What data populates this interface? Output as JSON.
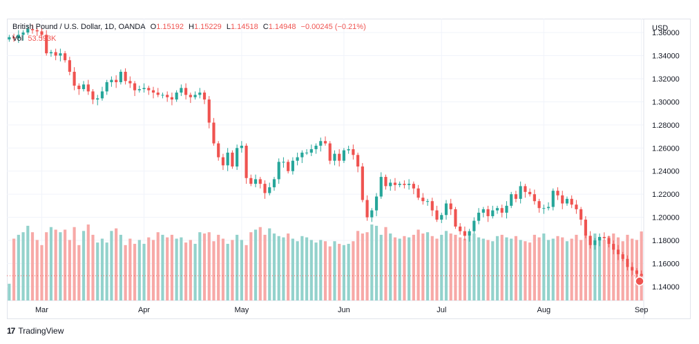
{
  "legend": {
    "symbol": "British Pound / U.S. Dollar, 1D, OANDA",
    "open_label": "O",
    "open": "1.15192",
    "high_label": "H",
    "high": "1.15229",
    "low_label": "L",
    "low": "1.14518",
    "close_label": "C",
    "close": "1.14948",
    "change": "−0.00245 (−0.21%)",
    "vol_label": "Vol",
    "vol": "53.593K"
  },
  "axis": {
    "currency": "USD"
  },
  "footer": {
    "brand": "TradingView",
    "logo_glyph": "17"
  },
  "colors": {
    "up": "#26a69a",
    "down": "#ef5350",
    "vol_up": "#93d2cc",
    "vol_down": "#f7a9a7",
    "grid": "#f0f3fa"
  },
  "chart_data": {
    "type": "candlestick",
    "x_tick_labels": [
      "Mar",
      "Apr",
      "May",
      "Jun",
      "Jul",
      "Aug",
      "Sep"
    ],
    "y_ticks": [
      1.14,
      1.16,
      1.18,
      1.2,
      1.22,
      1.24,
      1.26,
      1.28,
      1.3,
      1.32,
      1.34,
      1.36
    ],
    "ylim": [
      1.128,
      1.372
    ],
    "current_price": 1.14948,
    "series": [
      {
        "name": "price",
        "close": [
          1.356,
          1.355,
          1.358,
          1.36,
          1.363,
          1.362,
          1.361,
          1.358,
          1.342,
          1.343,
          1.34,
          1.342,
          1.336,
          1.326,
          1.314,
          1.311,
          1.315,
          1.309,
          1.302,
          1.303,
          1.309,
          1.317,
          1.319,
          1.317,
          1.326,
          1.318,
          1.316,
          1.31,
          1.311,
          1.312,
          1.31,
          1.308,
          1.306,
          1.306,
          1.304,
          1.302,
          1.308,
          1.312,
          1.306,
          1.304,
          1.306,
          1.308,
          1.302,
          1.282,
          1.264,
          1.252,
          1.245,
          1.256,
          1.244,
          1.26,
          1.262,
          1.234,
          1.229,
          1.233,
          1.229,
          1.221,
          1.226,
          1.233,
          1.248,
          1.248,
          1.24,
          1.249,
          1.252,
          1.256,
          1.256,
          1.259,
          1.262,
          1.266,
          1.264,
          1.249,
          1.255,
          1.249,
          1.258,
          1.259,
          1.254,
          1.244,
          1.215,
          1.2,
          1.206,
          1.218,
          1.235,
          1.227,
          1.23,
          1.228,
          1.229,
          1.228,
          1.229,
          1.225,
          1.217,
          1.214,
          1.214,
          1.206,
          1.198,
          1.202,
          1.212,
          1.207,
          1.192,
          1.188,
          1.184,
          1.188,
          1.197,
          1.204,
          1.207,
          1.201,
          1.206,
          1.208,
          1.204,
          1.21,
          1.22,
          1.216,
          1.227,
          1.222,
          1.22,
          1.214,
          1.208,
          1.208,
          1.209,
          1.223,
          1.219,
          1.212,
          1.216,
          1.211,
          1.207,
          1.198,
          1.184,
          1.176,
          1.18,
          1.183,
          1.182,
          1.177,
          1.172,
          1.168,
          1.164,
          1.157,
          1.154,
          1.151,
          1.1495
        ]
      },
      {
        "name": "Vol",
        "values": [
          13,
          48,
          51,
          53,
          58,
          53,
          47,
          43,
          53,
          57,
          55,
          53,
          55,
          47,
          57,
          43,
          54,
          59,
          51,
          45,
          48,
          45,
          54,
          56,
          51,
          43,
          48,
          44,
          47,
          44,
          49,
          47,
          53,
          51,
          49,
          51,
          48,
          49,
          45,
          47,
          44,
          53,
          52,
          53,
          46,
          51,
          48,
          44,
          47,
          51,
          47,
          43,
          53,
          55,
          57,
          51,
          56,
          52,
          50,
          49,
          52,
          48,
          46,
          50,
          49,
          47,
          45,
          47,
          46,
          42,
          46,
          44,
          43,
          44,
          46,
          54,
          52,
          53,
          59,
          58,
          51,
          57,
          52,
          49,
          48,
          50,
          49,
          51,
          55,
          52,
          53,
          50,
          48,
          51,
          54,
          52,
          51,
          49,
          48,
          50,
          52,
          49,
          48,
          47,
          46,
          50,
          51,
          49,
          48,
          50,
          47,
          46,
          45,
          51,
          49,
          52,
          47,
          48,
          50,
          49,
          46,
          48,
          51,
          47,
          50,
          48,
          52,
          49,
          47,
          50,
          52,
          49,
          46,
          51,
          48,
          47,
          53.593
        ]
      }
    ]
  }
}
